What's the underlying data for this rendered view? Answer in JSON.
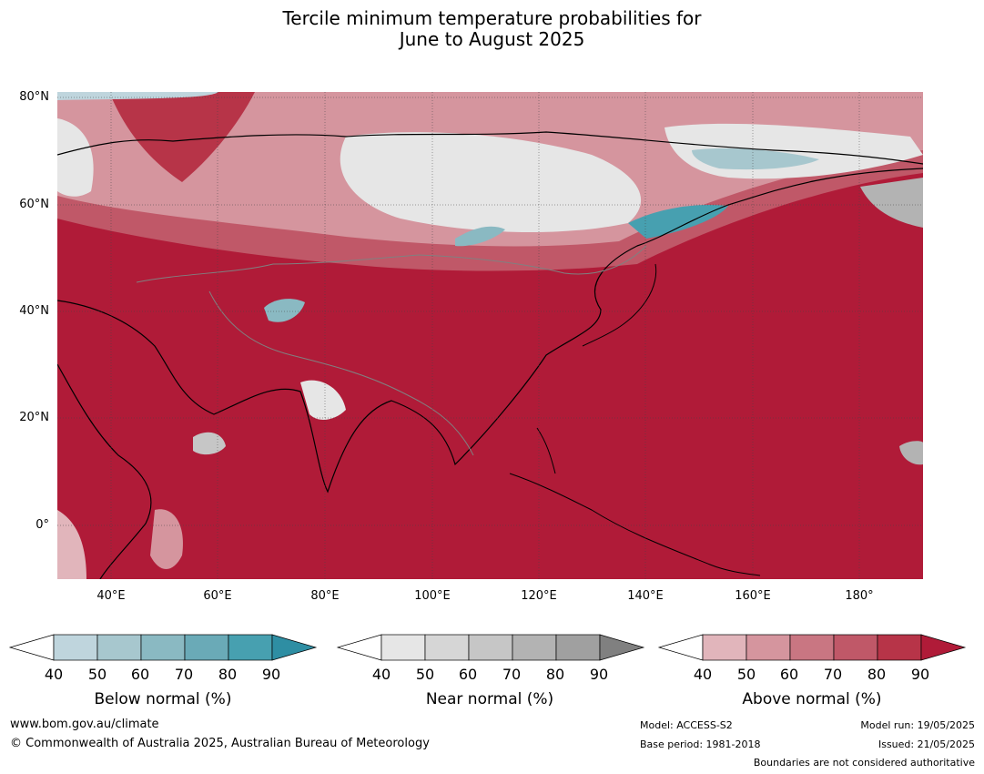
{
  "title_line1": "Tercile minimum temperature probabilities for",
  "title_line2": "June to August 2025",
  "lat_labels": [
    "80°N",
    "60°N",
    "40°N",
    "20°N",
    "0°"
  ],
  "lon_labels": [
    "40°E",
    "60°E",
    "80°E",
    "100°E",
    "120°E",
    "140°E",
    "160°E",
    "180°"
  ],
  "colorbars": {
    "below": {
      "title": "Below normal (%)",
      "ticks": [
        "40",
        "50",
        "60",
        "70",
        "80",
        "90"
      ],
      "colors": [
        "#ffffff",
        "#bfd5dd",
        "#a7c7ce",
        "#8ab9c2",
        "#6aaab7",
        "#47a0b0",
        "#2e8ea3"
      ]
    },
    "near": {
      "title": "Near normal (%)",
      "ticks": [
        "40",
        "50",
        "60",
        "70",
        "80",
        "90"
      ],
      "colors": [
        "#ffffff",
        "#e6e6e6",
        "#d6d6d6",
        "#c6c6c6",
        "#b3b3b3",
        "#a0a0a0",
        "#808080"
      ]
    },
    "above": {
      "title": "Above normal (%)",
      "ticks": [
        "40",
        "50",
        "60",
        "70",
        "80",
        "90"
      ],
      "colors": [
        "#ffffff",
        "#e1b5bb",
        "#d5959e",
        "#c97682",
        "#c05868",
        "#b73448",
        "#b01b38"
      ]
    }
  },
  "footer": {
    "website": "www.bom.gov.au/climate",
    "copyright": "© Commonwealth of Australia 2025, Australian Bureau of Meteorology",
    "model": "Model: ACCESS-S2",
    "base_period": "Base period: 1981-2018",
    "model_run": "Model run: 19/05/2025",
    "issued": "Issued: 21/05/2025",
    "disclaimer": "Boundaries are not considered authoritative"
  }
}
